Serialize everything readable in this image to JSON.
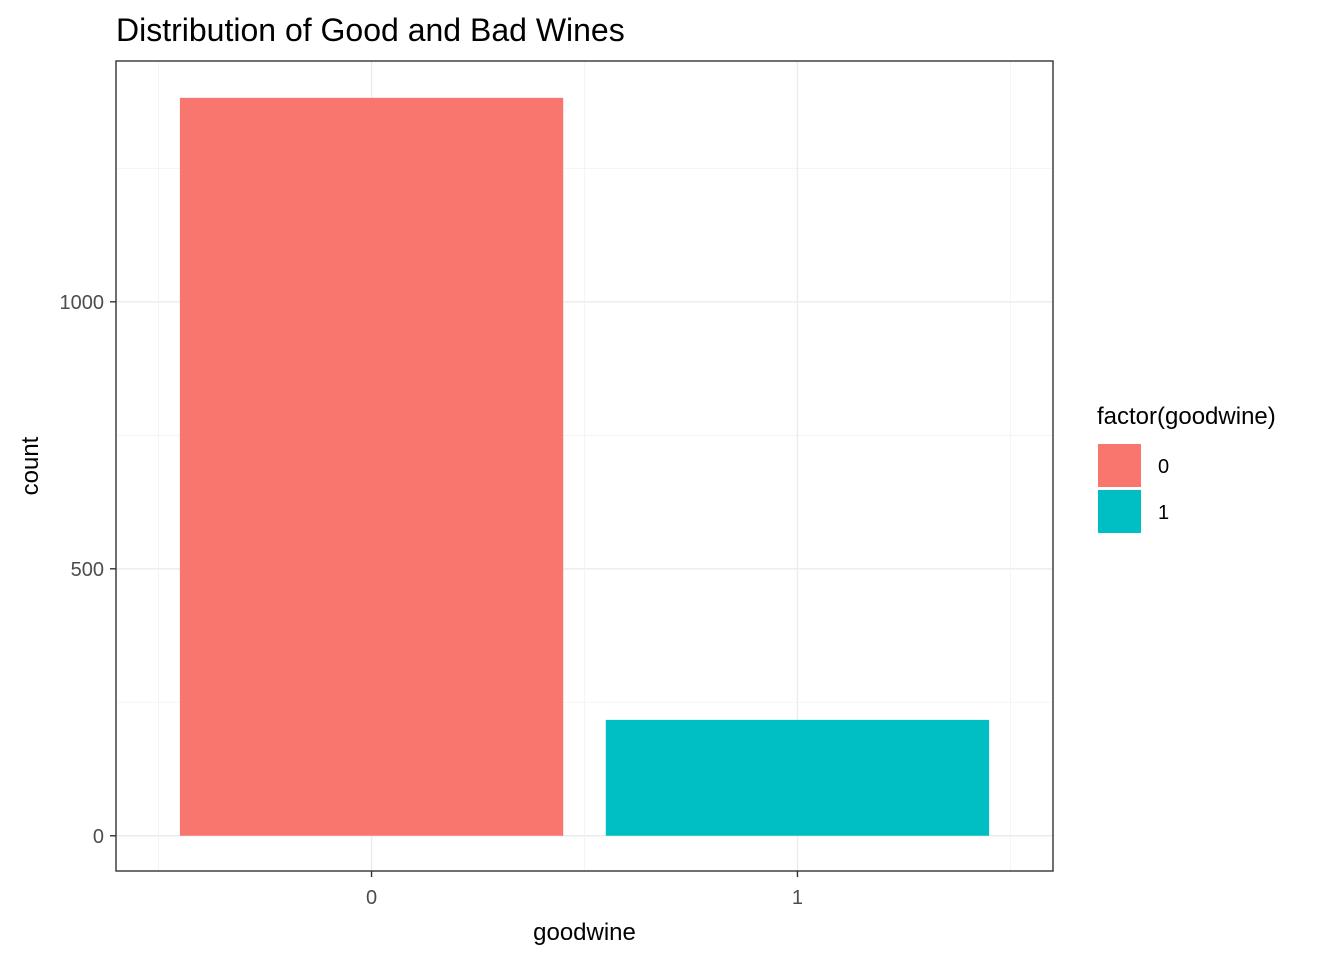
{
  "chart_data": {
    "type": "bar",
    "title": "Distribution of Good and Bad Wines",
    "xlabel": "goodwine",
    "ylabel": "count",
    "categories": [
      "0",
      "1"
    ],
    "values": [
      1382,
      217
    ],
    "ylim": [
      -66,
      1451
    ],
    "yticks": [
      0,
      500,
      1000
    ],
    "ytick_labels": [
      "0",
      "500",
      "1000"
    ],
    "xtick_labels": [
      "0",
      "1"
    ],
    "grid": true,
    "colors": [
      "#F8766D",
      "#00BFC4"
    ],
    "legend": {
      "title": "factor(goodwine)",
      "entries": [
        "0",
        "1"
      ],
      "placement": "right"
    }
  }
}
